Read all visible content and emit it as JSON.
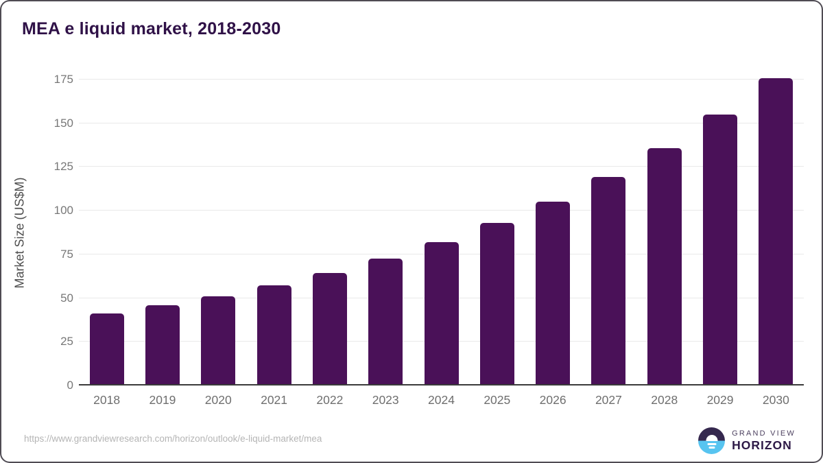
{
  "title": "MEA e liquid market, 2018-2030",
  "chart_data": {
    "type": "bar",
    "categories": [
      "2018",
      "2019",
      "2020",
      "2021",
      "2022",
      "2023",
      "2024",
      "2025",
      "2026",
      "2027",
      "2028",
      "2029",
      "2030"
    ],
    "values": [
      40.5,
      45.0,
      50.4,
      56.7,
      63.7,
      71.9,
      81.1,
      92.2,
      104.4,
      118.5,
      134.8,
      154.1,
      175.2
    ],
    "title": "MEA e liquid market, 2018-2030",
    "xlabel": "",
    "ylabel": "Market Size (US$M)",
    "ylim": [
      0,
      175
    ],
    "yticks": [
      0,
      25,
      50,
      75,
      100,
      125,
      150,
      175
    ],
    "grid": true,
    "legend": "none",
    "bar_color": "#4a1158"
  },
  "footer": {
    "source_url": "https://www.grandviewresearch.com/horizon/outlook/e-liquid-market/mea",
    "logo": {
      "line1": "GRAND VIEW",
      "line2": "HORIZON"
    }
  },
  "colors": {
    "bar": "#4a1158",
    "title_text": "#2f1147",
    "gridline": "#e9e9e9",
    "axis_line": "#3a3a3a",
    "tick_text": "#777777",
    "url_text": "#b5b5b5",
    "logo_purple": "#35284e",
    "logo_blue": "#57c4f0"
  }
}
